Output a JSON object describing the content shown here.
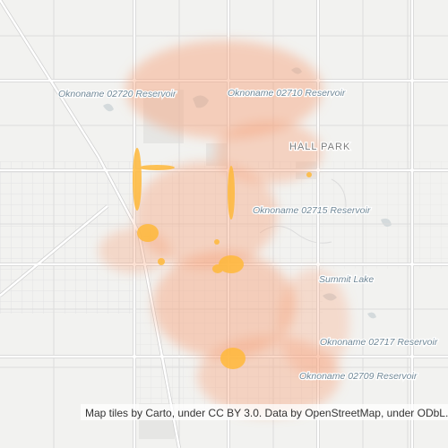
{
  "map": {
    "labels": [
      "Oknoname 02720 Reservoir",
      "Oknoname 02710 Reservoir",
      "HALL PARK",
      "Oknoname 02715 Reservoir",
      "Summit Lake",
      "Oknoname 02717 Reservoir",
      "Oknoname 02709 Reservoir"
    ],
    "attribution": "Map tiles by Carto, under CC BY 3.0. Data by OpenStreetMap, under ODbL."
  }
}
